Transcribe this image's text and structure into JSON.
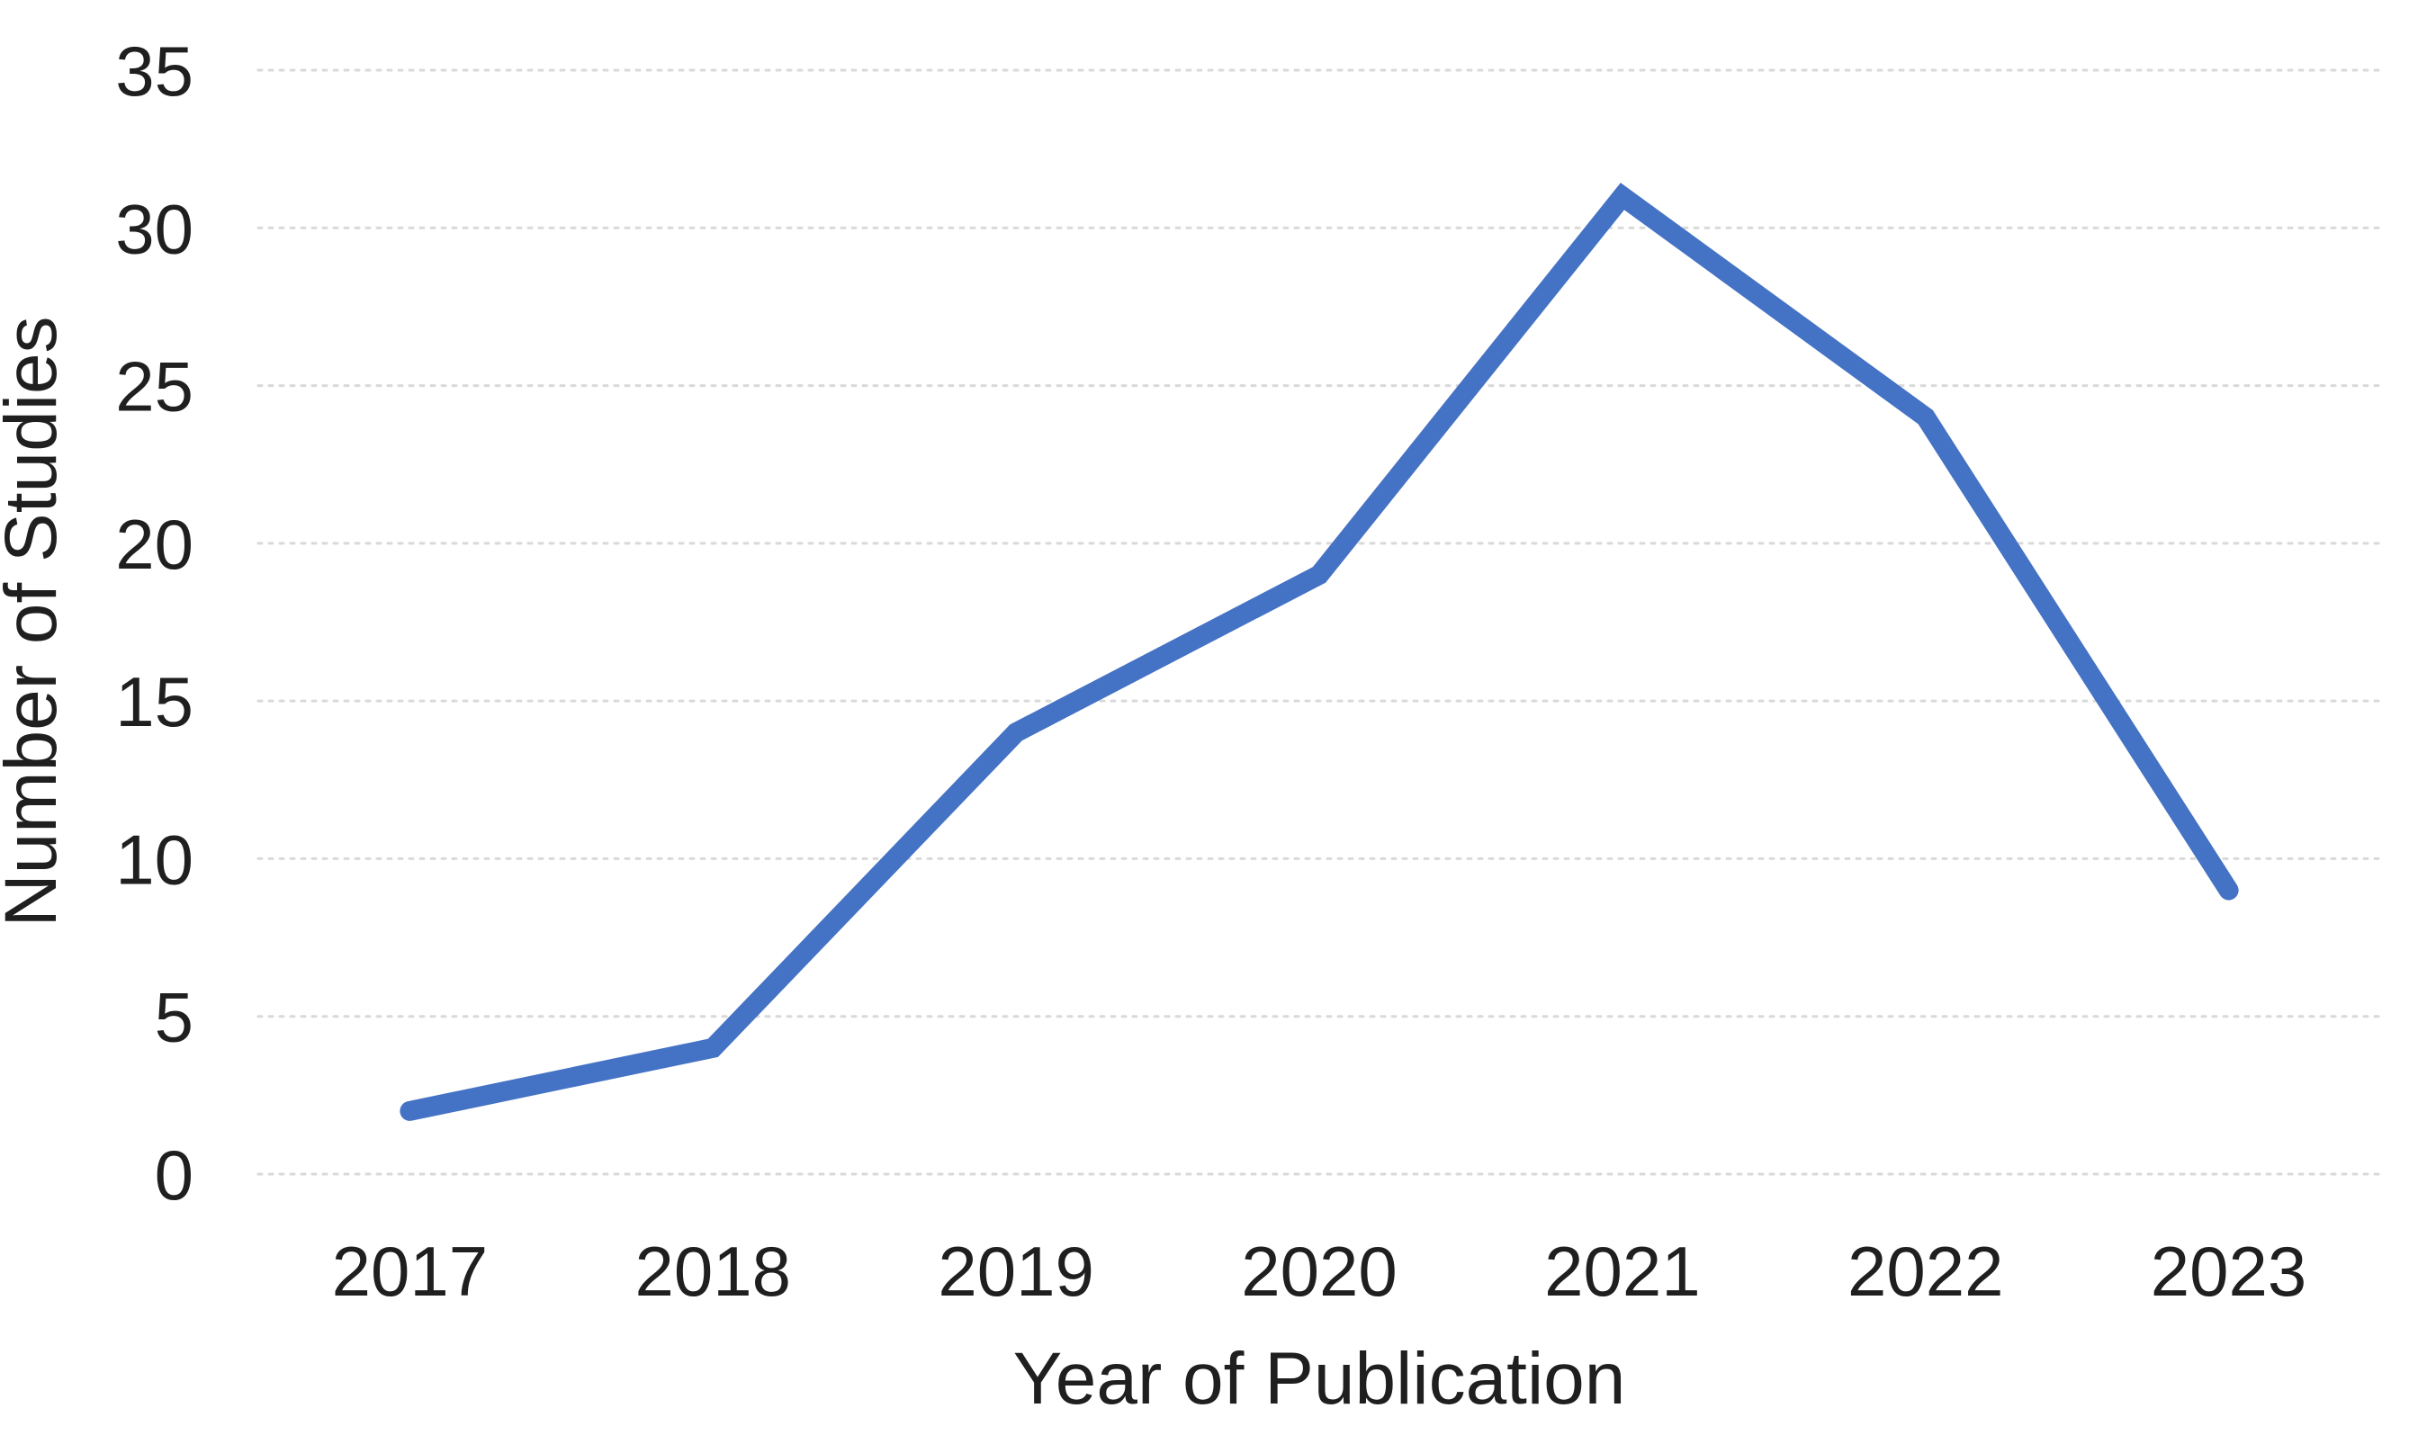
{
  "chart_data": {
    "type": "line",
    "categories": [
      "2017",
      "2018",
      "2019",
      "2020",
      "2021",
      "2022",
      "2023"
    ],
    "values": [
      2,
      4,
      14,
      19,
      31,
      24,
      9
    ],
    "title": "",
    "xlabel": "Year of Publication",
    "ylabel": "Number of Studies",
    "ylim": [
      0,
      35
    ],
    "ytick_step": 5,
    "yticks": [
      "0",
      "5",
      "10",
      "15",
      "20",
      "25",
      "30",
      "35"
    ],
    "grid": "horizontal-dotted",
    "legend": "none",
    "line_color": "#4472C4",
    "grid_color": "#D9D9D9",
    "text_color": "#1f1f1f",
    "background_color": "#FFFFFF"
  }
}
